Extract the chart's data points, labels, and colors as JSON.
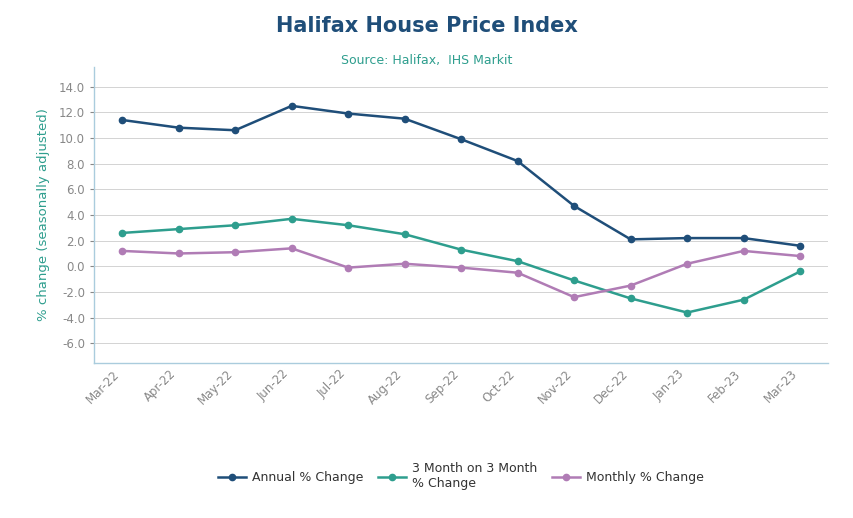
{
  "title": "Halifax House Price Index",
  "subtitle": "Source: Halifax,  IHS Markit",
  "ylabel": "% change (seasonally adjusted)",
  "categories": [
    "Mar-22",
    "Apr-22",
    "May-22",
    "Jun-22",
    "Jul-22",
    "Aug-22",
    "Sep-22",
    "Oct-22",
    "Nov-22",
    "Dec-22",
    "Jan-23",
    "Feb-23",
    "Mar-23"
  ],
  "annual": [
    11.4,
    10.8,
    10.6,
    12.5,
    11.9,
    11.5,
    9.9,
    8.2,
    4.7,
    2.1,
    2.2,
    2.2,
    1.6
  ],
  "three_month": [
    2.6,
    2.9,
    3.2,
    3.7,
    3.2,
    2.5,
    1.3,
    0.4,
    -1.1,
    -2.5,
    -3.6,
    -2.6,
    -0.4
  ],
  "monthly": [
    1.2,
    1.0,
    1.1,
    1.4,
    -0.1,
    0.2,
    -0.1,
    -0.5,
    -2.4,
    -1.5,
    0.2,
    1.2,
    0.8
  ],
  "annual_color": "#1F4E79",
  "three_month_color": "#2E9E8E",
  "monthly_color": "#B07CB5",
  "title_color": "#1F4E79",
  "subtitle_color": "#2E9E8E",
  "ylabel_color": "#2E9E8E",
  "ytick_labels": [
    "14.0",
    "12.0",
    "10.0",
    "8.0",
    "6.0",
    "4.0",
    "2.0",
    "0.0",
    "-2.0",
    "-4.0",
    "-6.0"
  ],
  "ytick_vals": [
    14.0,
    12.0,
    10.0,
    8.0,
    6.0,
    4.0,
    2.0,
    0.0,
    -2.0,
    -4.0,
    -6.0
  ],
  "ylim": [
    -7.5,
    15.5
  ],
  "background_color": "#FFFFFF",
  "grid_color": "#CCCCCC",
  "tick_color": "#888888",
  "spine_color": "#AACCDD"
}
